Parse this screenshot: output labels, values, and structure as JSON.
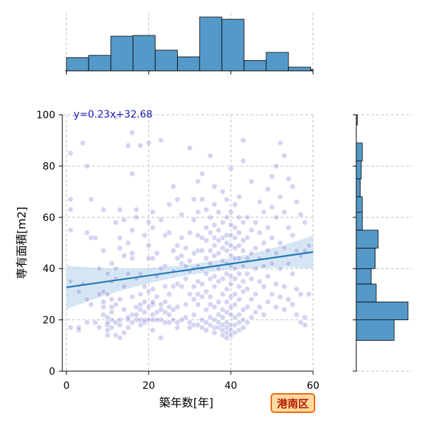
{
  "chart_data": {
    "type": "scatter",
    "xlabel": "築年数[年]",
    "ylabel": "専有面積[m2]",
    "xlim": [
      -1,
      60
    ],
    "ylim": [
      0,
      100
    ],
    "xticks": [
      0,
      20,
      40,
      60
    ],
    "yticks": [
      0,
      20,
      40,
      60,
      80,
      100
    ],
    "xtick_labels": [
      "0",
      "20",
      "40",
      "60"
    ],
    "ytick_labels": [
      "0",
      "20",
      "40",
      "60",
      "80",
      "100"
    ],
    "grid": true,
    "regression": {
      "label": "y=0.23x+32.68",
      "slope": 0.23,
      "intercept": 32.68,
      "x_range": [
        0,
        60
      ]
    },
    "badge": "港南区",
    "colors": {
      "points": "#7c7cd6",
      "regression_line": "#1f77b4",
      "confidence_band": "#c6dcef",
      "histogram": "#5599c8",
      "badge_fill": "#ffd9a0",
      "badge_border": "#ee6a10",
      "equation_text": "#1a1ab8"
    },
    "marginal_x_histogram": {
      "bin_edges": [
        0,
        5.4,
        10.8,
        16.2,
        21.6,
        27,
        32.4,
        37.8,
        43.2,
        48.6,
        54,
        59.4,
        60
      ],
      "counts": [
        18,
        21,
        47,
        48,
        28,
        19,
        73,
        70,
        14,
        25,
        5,
        2
      ]
    },
    "marginal_y_histogram": {
      "bin_edges": [
        12,
        20,
        27,
        34,
        40,
        48,
        55,
        62,
        68,
        75,
        82,
        89,
        96,
        100
      ],
      "counts": [
        38,
        52,
        20,
        15,
        19,
        22,
        6,
        6,
        4,
        5,
        6,
        0,
        1
      ]
    },
    "points": [
      [
        1,
        17
      ],
      [
        1,
        35
      ],
      [
        1,
        63
      ],
      [
        1,
        55
      ],
      [
        1,
        67
      ],
      [
        1,
        85
      ],
      [
        2,
        100
      ],
      [
        3,
        16
      ],
      [
        3,
        17
      ],
      [
        3,
        31
      ],
      [
        4,
        89
      ],
      [
        4,
        34
      ],
      [
        5,
        54
      ],
      [
        5,
        19
      ],
      [
        5,
        80
      ],
      [
        5,
        28
      ],
      [
        6,
        67
      ],
      [
        6,
        52
      ],
      [
        6,
        26
      ],
      [
        7,
        19
      ],
      [
        7,
        52
      ],
      [
        8,
        30
      ],
      [
        8,
        17
      ],
      [
        8,
        40
      ],
      [
        9,
        22
      ],
      [
        9,
        25
      ],
      [
        9,
        27
      ],
      [
        9,
        31
      ],
      [
        9,
        47
      ],
      [
        9,
        63
      ],
      [
        10,
        14
      ],
      [
        10,
        16
      ],
      [
        10,
        18
      ],
      [
        10,
        19
      ],
      [
        10,
        21
      ],
      [
        10,
        38
      ],
      [
        10,
        30
      ],
      [
        11,
        17
      ],
      [
        11,
        23
      ],
      [
        11,
        20
      ],
      [
        11,
        25
      ],
      [
        11,
        28
      ],
      [
        11,
        35
      ],
      [
        11,
        42
      ],
      [
        12,
        19
      ],
      [
        12,
        14
      ],
      [
        12,
        26
      ],
      [
        12,
        40
      ],
      [
        12,
        36
      ],
      [
        12,
        58
      ],
      [
        12,
        99
      ],
      [
        13,
        13
      ],
      [
        13,
        18
      ],
      [
        13,
        20
      ],
      [
        13,
        28
      ],
      [
        13,
        48
      ],
      [
        13,
        52
      ],
      [
        13,
        63
      ],
      [
        14,
        15
      ],
      [
        14,
        24
      ],
      [
        14,
        33
      ],
      [
        14,
        45
      ],
      [
        14,
        59
      ],
      [
        15,
        17
      ],
      [
        15,
        20
      ],
      [
        15,
        21
      ],
      [
        15,
        38
      ],
      [
        15,
        50
      ],
      [
        15,
        88
      ],
      [
        16,
        19
      ],
      [
        16,
        22
      ],
      [
        16,
        29
      ],
      [
        16,
        44
      ],
      [
        16,
        46
      ],
      [
        16,
        55
      ],
      [
        16,
        77
      ],
      [
        16,
        93
      ],
      [
        17,
        20
      ],
      [
        17,
        22
      ],
      [
        17,
        25
      ],
      [
        17,
        36
      ],
      [
        17,
        60
      ],
      [
        17,
        63
      ],
      [
        18,
        18
      ],
      [
        18,
        20
      ],
      [
        18,
        24
      ],
      [
        18,
        26
      ],
      [
        18,
        30
      ],
      [
        18,
        38
      ],
      [
        18,
        88
      ],
      [
        19,
        19
      ],
      [
        19,
        20
      ],
      [
        19,
        23
      ],
      [
        19,
        27
      ],
      [
        19,
        33
      ],
      [
        19,
        53
      ],
      [
        20,
        20
      ],
      [
        20,
        25
      ],
      [
        20,
        31
      ],
      [
        20,
        44
      ],
      [
        20,
        49
      ],
      [
        20,
        58
      ],
      [
        20,
        89
      ],
      [
        21,
        16
      ],
      [
        21,
        20
      ],
      [
        21,
        22
      ],
      [
        21,
        26
      ],
      [
        21,
        27
      ],
      [
        21,
        32
      ],
      [
        21,
        44
      ],
      [
        21,
        56
      ],
      [
        21,
        62
      ],
      [
        22,
        20
      ],
      [
        22,
        23
      ],
      [
        22,
        29
      ],
      [
        22,
        37
      ],
      [
        22,
        46
      ],
      [
        23,
        13
      ],
      [
        23,
        20
      ],
      [
        23,
        24
      ],
      [
        23,
        26
      ],
      [
        23,
        40
      ],
      [
        23,
        59
      ],
      [
        23,
        90
      ],
      [
        24,
        19
      ],
      [
        24,
        23
      ],
      [
        24,
        27
      ],
      [
        24,
        33
      ],
      [
        24,
        41
      ],
      [
        24,
        53
      ],
      [
        25,
        19
      ],
      [
        25,
        22
      ],
      [
        25,
        25
      ],
      [
        25,
        30
      ],
      [
        25,
        54
      ],
      [
        25,
        65
      ],
      [
        26,
        20
      ],
      [
        26,
        24
      ],
      [
        26,
        33
      ],
      [
        26,
        39
      ],
      [
        26,
        47
      ],
      [
        26,
        72
      ],
      [
        27,
        17
      ],
      [
        27,
        19
      ],
      [
        27,
        25
      ],
      [
        27,
        34
      ],
      [
        27,
        44
      ],
      [
        27,
        49
      ],
      [
        27,
        67
      ],
      [
        28,
        20
      ],
      [
        28,
        33
      ],
      [
        28,
        42
      ],
      [
        28,
        45
      ],
      [
        28,
        52
      ],
      [
        28,
        61
      ],
      [
        29,
        21
      ],
      [
        29,
        26
      ],
      [
        29,
        36
      ],
      [
        29,
        41
      ],
      [
        29,
        48
      ],
      [
        30,
        17
      ],
      [
        30,
        19
      ],
      [
        30,
        30
      ],
      [
        30,
        39
      ],
      [
        30,
        43
      ],
      [
        30,
        54
      ],
      [
        30,
        87
      ],
      [
        31,
        18
      ],
      [
        31,
        22
      ],
      [
        31,
        28
      ],
      [
        31,
        33
      ],
      [
        31,
        40
      ],
      [
        31,
        46
      ],
      [
        31,
        59
      ],
      [
        31,
        67
      ],
      [
        32,
        18
      ],
      [
        32,
        26
      ],
      [
        32,
        30
      ],
      [
        32,
        35
      ],
      [
        32,
        41
      ],
      [
        32,
        47
      ],
      [
        32,
        53
      ],
      [
        32,
        62
      ],
      [
        32,
        74
      ],
      [
        33,
        17
      ],
      [
        33,
        20
      ],
      [
        33,
        29
      ],
      [
        33,
        34
      ],
      [
        33,
        40
      ],
      [
        33,
        47
      ],
      [
        33,
        52
      ],
      [
        33,
        67
      ],
      [
        33,
        77
      ],
      [
        34,
        16
      ],
      [
        34,
        19
      ],
      [
        34,
        24
      ],
      [
        34,
        31
      ],
      [
        34,
        38
      ],
      [
        34,
        44
      ],
      [
        34,
        51
      ],
      [
        34,
        56
      ],
      [
        34,
        63
      ],
      [
        35,
        18
      ],
      [
        35,
        21
      ],
      [
        35,
        26
      ],
      [
        35,
        29
      ],
      [
        35,
        36
      ],
      [
        35,
        42
      ],
      [
        35,
        47
      ],
      [
        35,
        54
      ],
      [
        35,
        60
      ],
      [
        35,
        84
      ],
      [
        36,
        15
      ],
      [
        36,
        17
      ],
      [
        36,
        20
      ],
      [
        36,
        25
      ],
      [
        36,
        33
      ],
      [
        36,
        37
      ],
      [
        36,
        45
      ],
      [
        36,
        49
      ],
      [
        36,
        52
      ],
      [
        36,
        57
      ],
      [
        36,
        65
      ],
      [
        36,
        72
      ],
      [
        37,
        17
      ],
      [
        37,
        19
      ],
      [
        37,
        22
      ],
      [
        37,
        27
      ],
      [
        37,
        35
      ],
      [
        37,
        40
      ],
      [
        37,
        46
      ],
      [
        37,
        51
      ],
      [
        37,
        55
      ],
      [
        37,
        62
      ],
      [
        38,
        14
      ],
      [
        38,
        16
      ],
      [
        38,
        18
      ],
      [
        38,
        21
      ],
      [
        38,
        24
      ],
      [
        38,
        30
      ],
      [
        38,
        36
      ],
      [
        38,
        43
      ],
      [
        38,
        48
      ],
      [
        38,
        52
      ],
      [
        38,
        58
      ],
      [
        38,
        70
      ],
      [
        39,
        13
      ],
      [
        39,
        15
      ],
      [
        39,
        17
      ],
      [
        39,
        19
      ],
      [
        39,
        23
      ],
      [
        39,
        27
      ],
      [
        39,
        32
      ],
      [
        39,
        38
      ],
      [
        39,
        42
      ],
      [
        39,
        47
      ],
      [
        39,
        50
      ],
      [
        39,
        53
      ],
      [
        39,
        60
      ],
      [
        39,
        67
      ],
      [
        40,
        14
      ],
      [
        40,
        16
      ],
      [
        40,
        18
      ],
      [
        40,
        22
      ],
      [
        40,
        25
      ],
      [
        40,
        29
      ],
      [
        40,
        34
      ],
      [
        40,
        37
      ],
      [
        40,
        41
      ],
      [
        40,
        45
      ],
      [
        40,
        49
      ],
      [
        40,
        53
      ],
      [
        40,
        57
      ],
      [
        40,
        62
      ],
      [
        40,
        79
      ],
      [
        41,
        15
      ],
      [
        41,
        18
      ],
      [
        41,
        21
      ],
      [
        41,
        26
      ],
      [
        41,
        30
      ],
      [
        41,
        36
      ],
      [
        41,
        40
      ],
      [
        41,
        44
      ],
      [
        41,
        48
      ],
      [
        41,
        52
      ],
      [
        41,
        56
      ],
      [
        41,
        65
      ],
      [
        42,
        16
      ],
      [
        42,
        19
      ],
      [
        42,
        22
      ],
      [
        42,
        28
      ],
      [
        42,
        33
      ],
      [
        42,
        38
      ],
      [
        42,
        44
      ],
      [
        42,
        49
      ],
      [
        42,
        54
      ],
      [
        42,
        60
      ],
      [
        42,
        68
      ],
      [
        43,
        17
      ],
      [
        43,
        20
      ],
      [
        43,
        24
      ],
      [
        43,
        31
      ],
      [
        43,
        35
      ],
      [
        43,
        41
      ],
      [
        43,
        47
      ],
      [
        43,
        51
      ],
      [
        43,
        58
      ],
      [
        43,
        82
      ],
      [
        43,
        90
      ],
      [
        44,
        19
      ],
      [
        44,
        25
      ],
      [
        44,
        32
      ],
      [
        44,
        38
      ],
      [
        44,
        44
      ],
      [
        44,
        52
      ],
      [
        44,
        60
      ],
      [
        45,
        21
      ],
      [
        45,
        28
      ],
      [
        45,
        36
      ],
      [
        45,
        46
      ],
      [
        45,
        55
      ],
      [
        45,
        74
      ],
      [
        46,
        23
      ],
      [
        46,
        30
      ],
      [
        46,
        40
      ],
      [
        46,
        48
      ],
      [
        46,
        58
      ],
      [
        47,
        25
      ],
      [
        47,
        35
      ],
      [
        47,
        44
      ],
      [
        47,
        54
      ],
      [
        47,
        66
      ],
      [
        48,
        22
      ],
      [
        48,
        33
      ],
      [
        48,
        41
      ],
      [
        48,
        50
      ],
      [
        48,
        62
      ],
      [
        49,
        27
      ],
      [
        49,
        37
      ],
      [
        49,
        47
      ],
      [
        49,
        56
      ],
      [
        49,
        71
      ],
      [
        50,
        30
      ],
      [
        50,
        42
      ],
      [
        50,
        52
      ],
      [
        50,
        64
      ],
      [
        50,
        76
      ],
      [
        51,
        25
      ],
      [
        51,
        34
      ],
      [
        51,
        46
      ],
      [
        51,
        60
      ],
      [
        51,
        80
      ],
      [
        52,
        29
      ],
      [
        52,
        40
      ],
      [
        52,
        50
      ],
      [
        52,
        68
      ],
      [
        52,
        89
      ],
      [
        53,
        24
      ],
      [
        53,
        33
      ],
      [
        53,
        48
      ],
      [
        53,
        62
      ],
      [
        53,
        84
      ],
      [
        54,
        28
      ],
      [
        54,
        42
      ],
      [
        54,
        56
      ],
      [
        54,
        75
      ],
      [
        55,
        26
      ],
      [
        55,
        38
      ],
      [
        55,
        53
      ],
      [
        55,
        72
      ],
      [
        56,
        22
      ],
      [
        56,
        32
      ],
      [
        56,
        47
      ],
      [
        56,
        66
      ],
      [
        57,
        19
      ],
      [
        57,
        30
      ],
      [
        57,
        45
      ],
      [
        57,
        61
      ],
      [
        58,
        18
      ],
      [
        58,
        21
      ],
      [
        58,
        47
      ],
      [
        58,
        58
      ],
      [
        59,
        30
      ],
      [
        59,
        49
      ]
    ]
  }
}
